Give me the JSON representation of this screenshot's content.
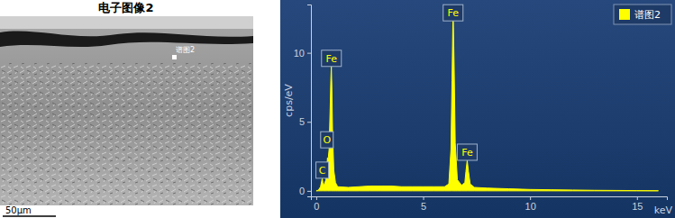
{
  "image": {
    "title": "电子图像2",
    "marker": "谱图2",
    "scale_bar": "50μm"
  },
  "chart_data": {
    "type": "area",
    "y_label": "cps/eV",
    "x_label": "keV",
    "x": [
      0,
      0.1,
      0.2,
      0.25,
      0.28,
      0.31,
      0.36,
      0.45,
      0.5,
      0.525,
      0.55,
      0.6,
      0.65,
      0.68,
      0.705,
      0.73,
      0.76,
      0.82,
      0.9,
      1.0,
      1.5,
      2,
      2.5,
      3,
      3.5,
      4,
      4.5,
      5,
      5.5,
      6,
      6.2,
      6.3,
      6.35,
      6.4,
      6.45,
      6.5,
      6.6,
      6.8,
      6.95,
      7.0,
      7.06,
      7.12,
      7.2,
      7.4,
      8,
      9,
      10,
      11,
      12,
      13,
      14,
      15,
      16
    ],
    "series": [
      {
        "name": "谱图2",
        "color": "#ffff00",
        "values": [
          0,
          0.05,
          0.3,
          0.7,
          0.9,
          0.6,
          0.4,
          0.8,
          1.8,
          2.4,
          2.2,
          3.0,
          6.0,
          8.0,
          9.0,
          7.5,
          4.5,
          1.5,
          0.6,
          0.3,
          0.25,
          0.3,
          0.35,
          0.35,
          0.35,
          0.3,
          0.3,
          0.3,
          0.3,
          0.3,
          0.5,
          3.0,
          8.0,
          13.3,
          9.0,
          3.5,
          0.8,
          0.4,
          0.6,
          1.4,
          2.2,
          1.4,
          0.5,
          0.25,
          0.2,
          0.15,
          0.1,
          0.08,
          0.06,
          0.04,
          0.03,
          0.02,
          0.01
        ]
      }
    ],
    "annotations": [
      {
        "text": "C",
        "x": 0.28,
        "y": 1.5
      },
      {
        "text": "O",
        "x": 0.5,
        "y": 3.7
      },
      {
        "text": "Fe",
        "x": 0.71,
        "y": 9.6
      },
      {
        "text": "Fe",
        "x": 6.4,
        "y": 12.9
      },
      {
        "text": "Fe",
        "x": 7.06,
        "y": 2.8
      }
    ],
    "xlim": [
      -0.25,
      16.4
    ],
    "ylim": [
      -0.4,
      13.5
    ],
    "xticks": [
      0,
      5,
      10,
      15
    ],
    "yticks": [
      0,
      5,
      10
    ],
    "grid": false,
    "legend": "upper right"
  }
}
